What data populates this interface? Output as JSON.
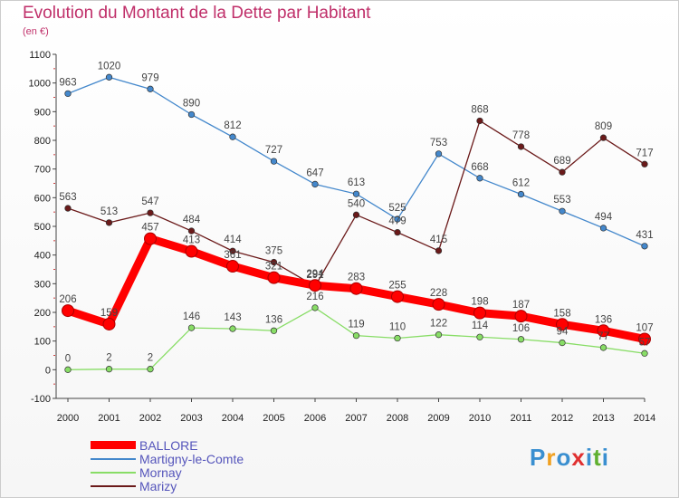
{
  "title": "Evolution du Montant de la Dette par Habitant",
  "unit": "(en €)",
  "logo": [
    "P",
    "r",
    "o",
    "x",
    "i",
    "t",
    "i"
  ],
  "logo_colors": [
    "#3a8fd0",
    "#f0a020",
    "#3a8fd0",
    "#e03030",
    "#3a8fd0",
    "#60b030",
    "#3a8fd0"
  ],
  "chart_data": {
    "type": "line",
    "x": [
      "2000",
      "2001",
      "2002",
      "2003",
      "2004",
      "2005",
      "2006",
      "2007",
      "2008",
      "2009",
      "2010",
      "2011",
      "2012",
      "2013",
      "2014"
    ],
    "ylim": [
      -100,
      1100
    ],
    "yticks": [
      -100,
      0,
      100,
      200,
      300,
      400,
      500,
      600,
      700,
      800,
      900,
      1000,
      1100
    ],
    "grid": false,
    "legend_position": "bottom-left",
    "series": [
      {
        "name": "Martigny-le-Comte",
        "color": "#4488cc",
        "values": [
          963,
          1020,
          979,
          890,
          812,
          727,
          647,
          613,
          525,
          753,
          668,
          612,
          553,
          494,
          431
        ]
      },
      {
        "name": "Mornay",
        "color": "#88dd66",
        "values": [
          0,
          2,
          2,
          146,
          143,
          136,
          216,
          119,
          110,
          122,
          114,
          106,
          94,
          77,
          57
        ]
      },
      {
        "name": "Marizy",
        "color": "#6b1a1a",
        "values": [
          563,
          513,
          547,
          484,
          414,
          375,
          291,
          540,
          479,
          415,
          868,
          778,
          689,
          809,
          717
        ]
      },
      {
        "name": "BALLORE",
        "color": "#ff0000",
        "values": [
          206,
          159,
          457,
          413,
          361,
          321,
          294,
          283,
          255,
          228,
          198,
          187,
          158,
          136,
          107
        ]
      }
    ],
    "legend_order": [
      "BALLORE",
      "Martigny-le-Comte",
      "Mornay",
      "Marizy"
    ]
  }
}
